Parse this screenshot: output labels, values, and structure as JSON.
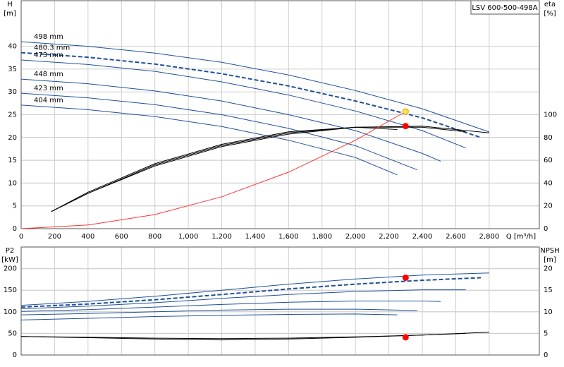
{
  "chart_data": [
    {
      "type": "line",
      "title": "LSV 600-500-498A",
      "y_label": "H",
      "y_unit": "[m]",
      "y2_label": "eta",
      "y2_unit": "[%]",
      "x_label": "Q [m³/h]",
      "xlim": [
        0,
        3100
      ],
      "xticks": [
        0,
        200,
        400,
        600,
        800,
        {
          "value": 1000,
          "label": "1,000"
        },
        {
          "value": 1200,
          "label": "1,200"
        },
        {
          "value": 1400,
          "label": "1,400"
        },
        {
          "value": 1600,
          "label": "1,600"
        },
        {
          "value": 1800,
          "label": "1,800"
        },
        {
          "value": 2000,
          "label": "2,000"
        },
        {
          "value": 2200,
          "label": "2,200"
        },
        {
          "value": 2400,
          "label": "2,400"
        },
        {
          "value": 2600,
          "label": "2,600"
        },
        {
          "value": 2800,
          "label": "2,800"
        }
      ],
      "ylim": [
        0,
        50
      ],
      "yticks": [
        0,
        5,
        10,
        15,
        20,
        25,
        30,
        35,
        40
      ],
      "y2lim": [
        0,
        200
      ],
      "y2ticks": [
        0,
        20,
        40,
        60,
        80,
        100
      ],
      "grid": true,
      "series": [
        {
          "name": "498 mm",
          "color": "#1f4f9a",
          "x": [
            0,
            400,
            800,
            1200,
            1600,
            2000,
            2400,
            2800
          ],
          "values": [
            41,
            40,
            38.5,
            36.5,
            33.7,
            30.3,
            26.3,
            21.2
          ]
        },
        {
          "name": "480.3 mm",
          "color": "#1f4f9a",
          "dash": true,
          "x": [
            0,
            400,
            800,
            1200,
            1600,
            2000,
            2400,
            2750
          ],
          "values": [
            38.6,
            37.6,
            36.1,
            34,
            31.3,
            28,
            24.3,
            20
          ]
        },
        {
          "name": "473 mm",
          "color": "#1f4f9a",
          "x": [
            0,
            400,
            800,
            1200,
            1600,
            2000,
            2400,
            2660
          ],
          "values": [
            37,
            36,
            34.5,
            32.2,
            29.3,
            25.8,
            21.5,
            17.7
          ]
        },
        {
          "name": "448 mm",
          "color": "#1f4f9a",
          "x": [
            0,
            400,
            800,
            1200,
            1600,
            2000,
            2400,
            2510
          ],
          "values": [
            32.8,
            31.8,
            30.2,
            28,
            25,
            21.5,
            16.5,
            14.8
          ]
        },
        {
          "name": "423 mm",
          "color": "#1f4f9a",
          "x": [
            0,
            400,
            800,
            1200,
            1600,
            2000,
            2370
          ],
          "values": [
            29.7,
            28.7,
            27.2,
            25,
            22,
            18.2,
            12.9
          ]
        },
        {
          "name": "404 mm",
          "color": "#1f4f9a",
          "x": [
            0,
            400,
            800,
            1200,
            1600,
            2000,
            2250
          ],
          "values": [
            27.1,
            26.1,
            24.6,
            22.4,
            19.4,
            15.6,
            11.8
          ]
        },
        {
          "color": "#000000",
          "axis": "y2",
          "x": [
            180,
            400,
            800,
            1200,
            1600,
            2000,
            2400,
            2800
          ],
          "values": [
            15,
            31,
            55,
            72,
            83,
            89,
            90,
            84
          ]
        },
        {
          "color": "#000000",
          "axis": "y2",
          "x": [
            180,
            400,
            800,
            1200,
            1600,
            2000,
            2400,
            2660
          ],
          "values": [
            15,
            31,
            56,
            73,
            84,
            89,
            89,
            85
          ]
        },
        {
          "color": "#000000",
          "axis": "y2",
          "x": [
            180,
            400,
            800,
            1200,
            1600,
            2000,
            2250
          ],
          "values": [
            15,
            32,
            57,
            74,
            85,
            89,
            87
          ]
        },
        {
          "color": "#ff3333",
          "x": [
            0,
            400,
            800,
            1200,
            1600,
            2000,
            2300
          ],
          "values": [
            0,
            0.8,
            3.1,
            7,
            12.4,
            19.4,
            25.7
          ]
        },
        {
          "color": "#ffe34d",
          "marker": true,
          "x": [
            2300
          ],
          "values": [
            25.7
          ]
        },
        {
          "color": "#ff0000",
          "marker": true,
          "axis": "y2",
          "x": [
            2300
          ],
          "values": [
            90
          ]
        }
      ]
    },
    {
      "type": "line",
      "y_label": "P2",
      "y_unit": "[kW]",
      "y2_label": "NPSH",
      "y2_unit": "[m]",
      "xlim": [
        0,
        3100
      ],
      "ylim": [
        0,
        250
      ],
      "yticks": [
        0,
        50,
        100,
        150,
        200
      ],
      "y2lim": [
        0,
        25
      ],
      "y2ticks": [
        0,
        5,
        10,
        15,
        20
      ],
      "grid": true,
      "series": [
        {
          "color": "#1f4f9a",
          "x": [
            0,
            400,
            800,
            1200,
            1600,
            2000,
            2400,
            2800
          ],
          "values": [
            115,
            124,
            136,
            150,
            164,
            176,
            185,
            190
          ]
        },
        {
          "color": "#1f4f9a",
          "dash": true,
          "x": [
            0,
            400,
            800,
            1200,
            1600,
            2000,
            2400,
            2750
          ],
          "values": [
            111,
            118,
            128,
            140,
            153,
            164,
            173,
            179
          ]
        },
        {
          "color": "#1f4f9a",
          "x": [
            0,
            400,
            800,
            1200,
            1600,
            2000,
            2400,
            2660
          ],
          "values": [
            107,
            113,
            121,
            131,
            140,
            147,
            151,
            151
          ]
        },
        {
          "color": "#1f4f9a",
          "x": [
            0,
            400,
            800,
            1200,
            1600,
            2000,
            2400,
            2510
          ],
          "values": [
            101,
            105,
            111,
            117,
            122,
            125,
            125,
            124
          ]
        },
        {
          "color": "#1f4f9a",
          "x": [
            0,
            400,
            800,
            1200,
            1600,
            2000,
            2370
          ],
          "values": [
            93,
            96,
            100,
            104,
            106,
            106,
            103
          ]
        },
        {
          "color": "#1f4f9a",
          "x": [
            0,
            400,
            800,
            1200,
            1600,
            2000,
            2250
          ],
          "values": [
            81,
            85,
            89,
            92,
            94,
            95,
            93
          ]
        },
        {
          "color": "#000000",
          "axis": "y2",
          "x": [
            0,
            400,
            800,
            1200,
            1600,
            2000,
            2400,
            2800
          ],
          "values": [
            4.3,
            4.0,
            3.7,
            3.5,
            3.7,
            4.1,
            4.6,
            5.3
          ]
        },
        {
          "color": "#000000",
          "axis": "y2",
          "x": [
            0,
            400,
            800,
            1200,
            1600,
            2000,
            2400,
            2660
          ],
          "values": [
            4.3,
            4.1,
            3.9,
            3.8,
            3.9,
            4.2,
            4.6,
            5.0
          ]
        },
        {
          "color": "#ff0000",
          "marker": true,
          "x": [
            2300
          ],
          "values": [
            179
          ]
        },
        {
          "color": "#ff0000",
          "marker": true,
          "axis": "y2",
          "x": [
            2300
          ],
          "values": [
            4.1
          ]
        }
      ]
    }
  ]
}
